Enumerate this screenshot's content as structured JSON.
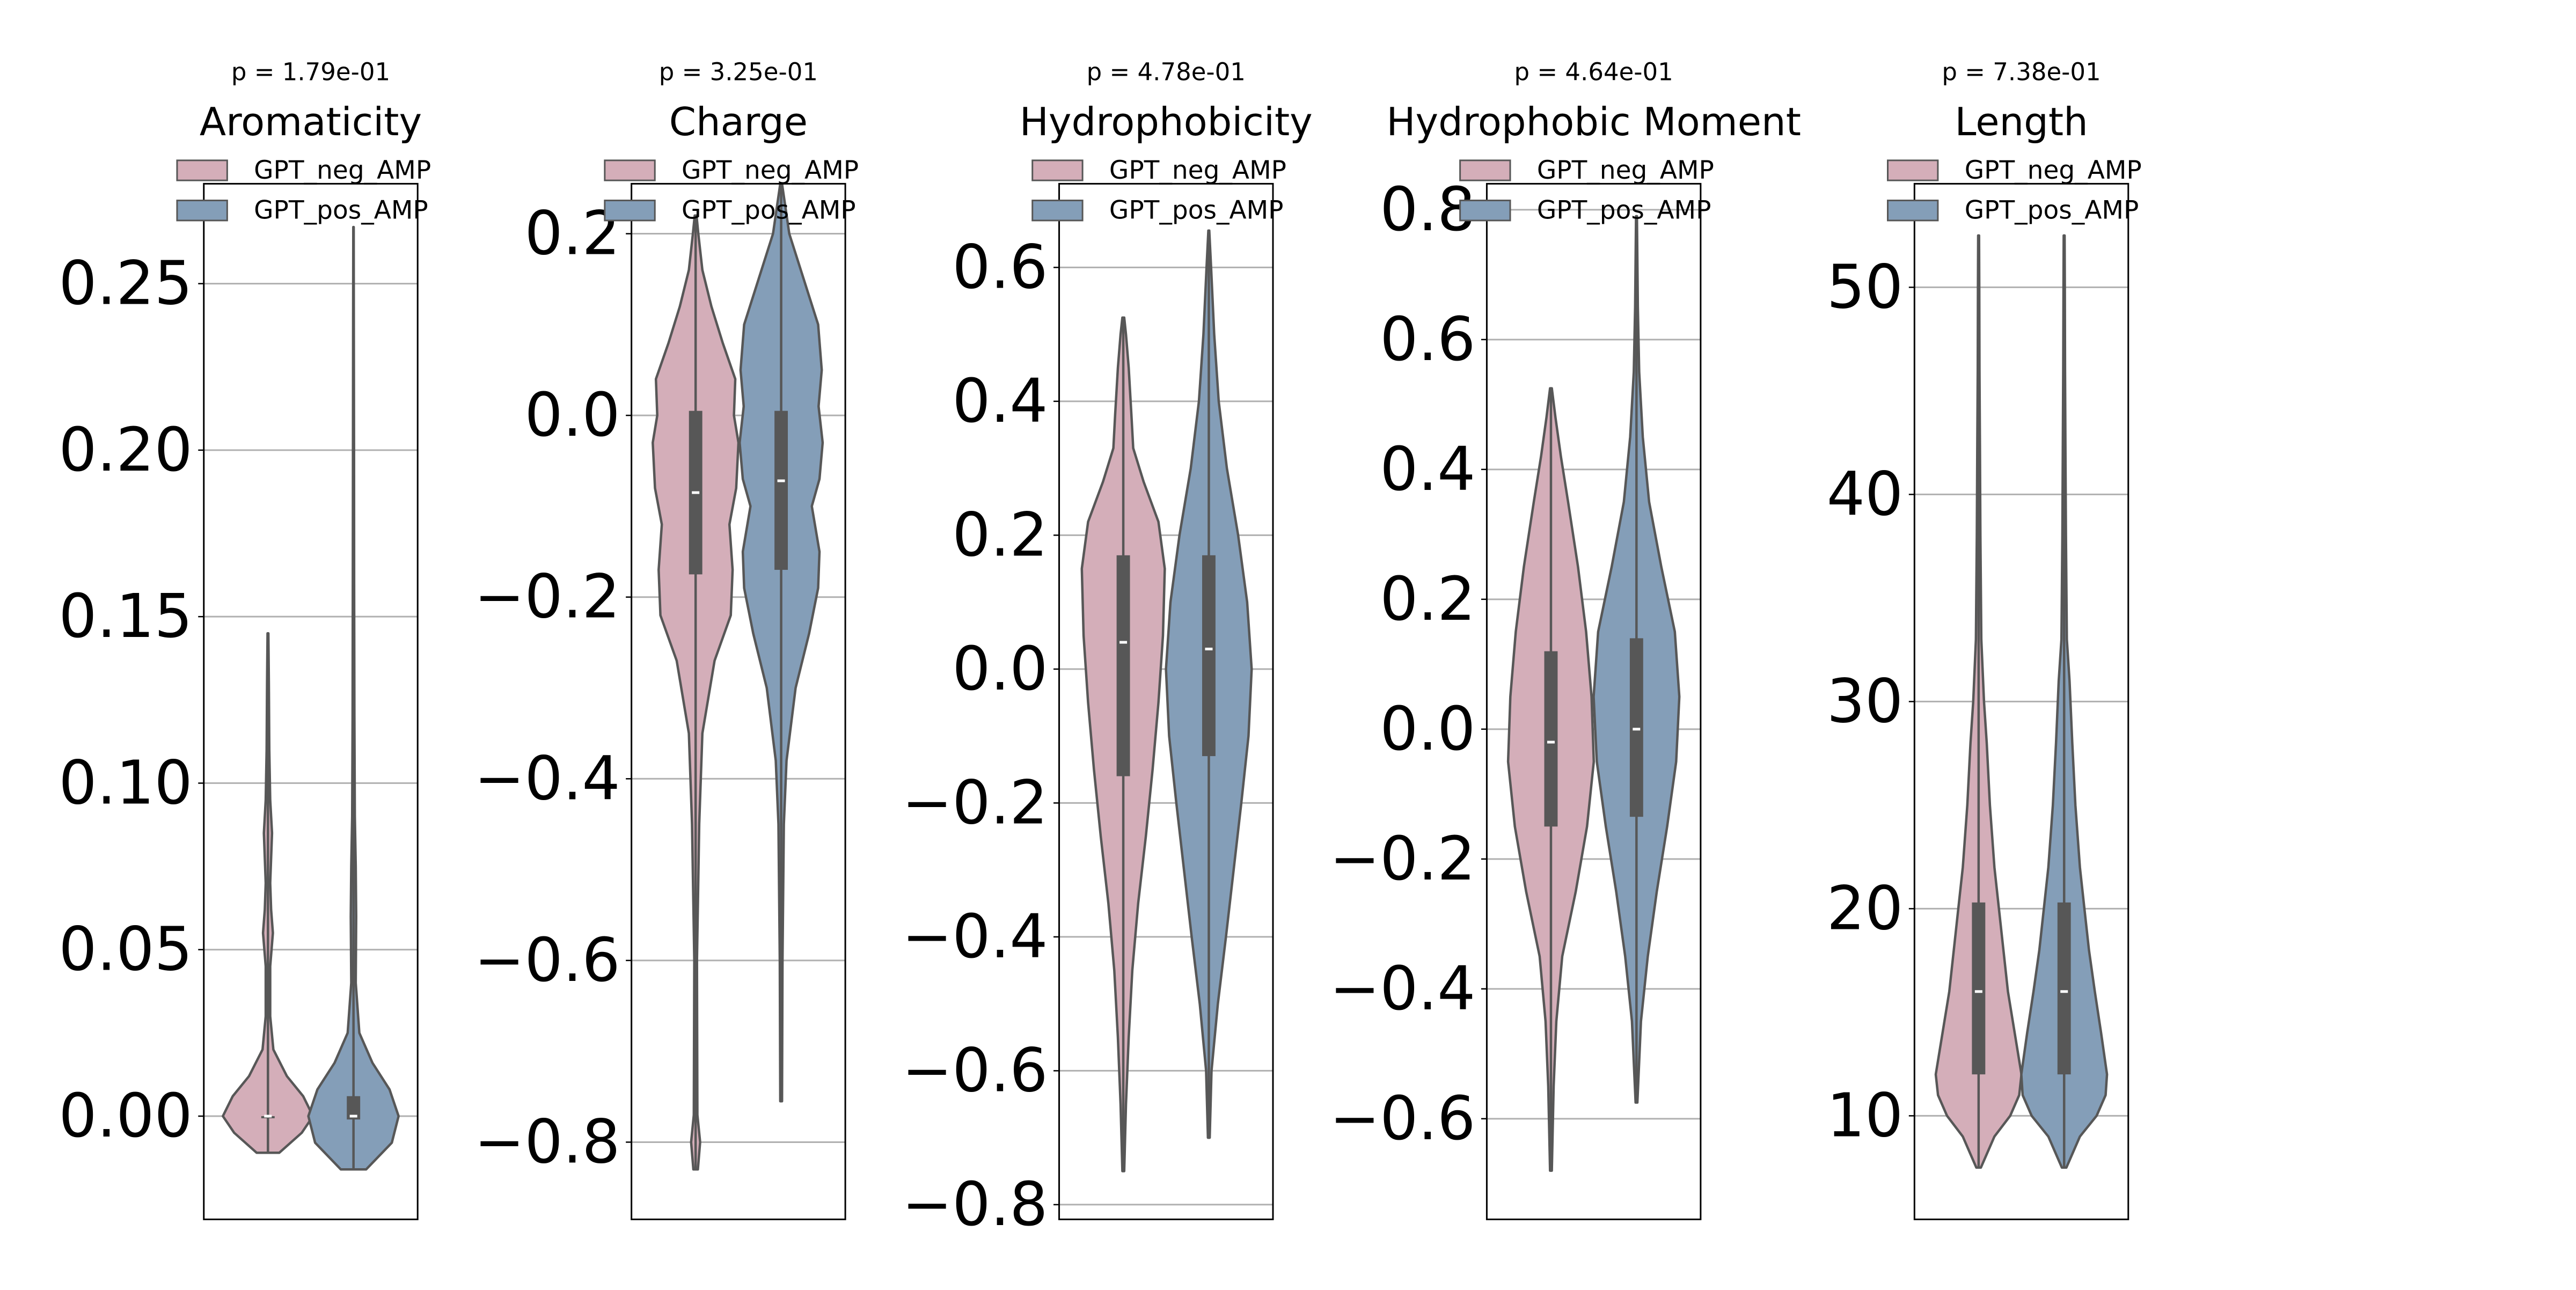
{
  "chart_data": [
    {
      "type": "violin",
      "title": "Aromaticity",
      "subtitle": "p = 1.79e-01",
      "ylim": [
        -0.031,
        0.28
      ],
      "yticks": [
        0.0,
        0.05,
        0.1,
        0.15,
        0.2,
        0.25
      ],
      "ytick_labels": [
        "0.00",
        "0.05",
        "0.10",
        "0.15",
        "0.20",
        "0.25"
      ],
      "grid": true,
      "legend_placement": "top",
      "series": [
        {
          "name": "GPT_neg_AMP",
          "color": "#d4aeb9",
          "min": -0.011,
          "q1": 0.0,
          "median": 0.0,
          "q3": 0.0,
          "max": 0.145,
          "density": [
            [
              -0.011,
              0.25
            ],
            [
              -0.005,
              0.75
            ],
            [
              0.0,
              1.0
            ],
            [
              0.006,
              0.78
            ],
            [
              0.012,
              0.42
            ],
            [
              0.02,
              0.12
            ],
            [
              0.03,
              0.05
            ],
            [
              0.045,
              0.05
            ],
            [
              0.055,
              0.11
            ],
            [
              0.062,
              0.07
            ],
            [
              0.07,
              0.05
            ],
            [
              0.085,
              0.09
            ],
            [
              0.095,
              0.05
            ],
            [
              0.11,
              0.03
            ],
            [
              0.13,
              0.02
            ],
            [
              0.145,
              0.01
            ]
          ]
        },
        {
          "name": "GPT_pos_AMP",
          "color": "#849eb8",
          "min": -0.016,
          "q1": -0.001,
          "median": 0.0,
          "q3": 0.006,
          "max": 0.267,
          "density": [
            [
              -0.016,
              0.28
            ],
            [
              -0.008,
              0.85
            ],
            [
              0.0,
              1.0
            ],
            [
              0.008,
              0.8
            ],
            [
              0.016,
              0.42
            ],
            [
              0.025,
              0.13
            ],
            [
              0.04,
              0.05
            ],
            [
              0.06,
              0.06
            ],
            [
              0.075,
              0.05
            ],
            [
              0.09,
              0.03
            ],
            [
              0.12,
              0.02
            ],
            [
              0.16,
              0.015
            ],
            [
              0.2,
              0.012
            ],
            [
              0.24,
              0.008
            ],
            [
              0.267,
              0.005
            ]
          ]
        }
      ]
    },
    {
      "type": "violin",
      "title": "Charge",
      "subtitle": "p = 3.25e-01",
      "ylim": [
        -0.885,
        0.255
      ],
      "yticks": [
        -0.8,
        -0.6,
        -0.4,
        -0.2,
        0.0,
        0.2
      ],
      "ytick_labels": [
        "−0.8",
        "−0.6",
        "−0.4",
        "−0.2",
        "0.0",
        "0.2"
      ],
      "grid": true,
      "legend_placement": "top",
      "series": [
        {
          "name": "GPT_neg_AMP",
          "color": "#d4aeb9",
          "min": -0.83,
          "q1": -0.175,
          "median": -0.085,
          "q3": 0.005,
          "max": 0.22,
          "density": [
            [
              -0.83,
              0.05
            ],
            [
              -0.8,
              0.1
            ],
            [
              -0.77,
              0.04
            ],
            [
              -0.6,
              0.03
            ],
            [
              -0.45,
              0.08
            ],
            [
              -0.35,
              0.15
            ],
            [
              -0.27,
              0.42
            ],
            [
              -0.22,
              0.78
            ],
            [
              -0.17,
              0.82
            ],
            [
              -0.12,
              0.75
            ],
            [
              -0.08,
              0.9
            ],
            [
              -0.03,
              0.95
            ],
            [
              0.0,
              0.85
            ],
            [
              0.04,
              0.88
            ],
            [
              0.08,
              0.6
            ],
            [
              0.12,
              0.35
            ],
            [
              0.16,
              0.15
            ],
            [
              0.2,
              0.06
            ],
            [
              0.22,
              0.02
            ]
          ]
        },
        {
          "name": "GPT_pos_AMP",
          "color": "#849eb8",
          "min": -0.755,
          "q1": -0.17,
          "median": -0.072,
          "q3": 0.005,
          "max": 0.255,
          "density": [
            [
              -0.755,
              0.02
            ],
            [
              -0.6,
              0.03
            ],
            [
              -0.45,
              0.06
            ],
            [
              -0.38,
              0.12
            ],
            [
              -0.3,
              0.32
            ],
            [
              -0.24,
              0.62
            ],
            [
              -0.19,
              0.82
            ],
            [
              -0.15,
              0.85
            ],
            [
              -0.1,
              0.68
            ],
            [
              -0.07,
              0.85
            ],
            [
              -0.03,
              0.92
            ],
            [
              0.01,
              0.83
            ],
            [
              0.05,
              0.9
            ],
            [
              0.1,
              0.82
            ],
            [
              0.15,
              0.5
            ],
            [
              0.2,
              0.18
            ],
            [
              0.255,
              0.02
            ]
          ]
        }
      ]
    },
    {
      "type": "violin",
      "title": "Hydrophobicity",
      "subtitle": "p = 4.78e-01",
      "ylim": [
        -0.822,
        0.725
      ],
      "yticks": [
        -0.8,
        -0.6,
        -0.4,
        -0.2,
        0.0,
        0.2,
        0.4,
        0.6
      ],
      "ytick_labels": [
        "−0.8",
        "−0.6",
        "−0.4",
        "−0.2",
        "0.0",
        "0.2",
        "0.4",
        "0.6"
      ],
      "grid": true,
      "legend_placement": "top",
      "series": [
        {
          "name": "GPT_neg_AMP",
          "color": "#d4aeb9",
          "min": -0.75,
          "q1": -0.16,
          "median": 0.04,
          "q3": 0.17,
          "max": 0.525,
          "density": [
            [
              -0.75,
              0.02
            ],
            [
              -0.65,
              0.06
            ],
            [
              -0.55,
              0.12
            ],
            [
              -0.45,
              0.2
            ],
            [
              -0.35,
              0.33
            ],
            [
              -0.25,
              0.5
            ],
            [
              -0.15,
              0.65
            ],
            [
              -0.05,
              0.78
            ],
            [
              0.05,
              0.88
            ],
            [
              0.15,
              0.92
            ],
            [
              0.22,
              0.78
            ],
            [
              0.28,
              0.45
            ],
            [
              0.33,
              0.22
            ],
            [
              0.38,
              0.18
            ],
            [
              0.45,
              0.12
            ],
            [
              0.5,
              0.06
            ],
            [
              0.525,
              0.02
            ]
          ]
        },
        {
          "name": "GPT_pos_AMP",
          "color": "#849eb8",
          "min": -0.7,
          "q1": -0.13,
          "median": 0.03,
          "q3": 0.17,
          "max": 0.655,
          "density": [
            [
              -0.7,
              0.02
            ],
            [
              -0.6,
              0.06
            ],
            [
              -0.5,
              0.2
            ],
            [
              -0.4,
              0.38
            ],
            [
              -0.3,
              0.55
            ],
            [
              -0.2,
              0.72
            ],
            [
              -0.1,
              0.88
            ],
            [
              0.0,
              0.95
            ],
            [
              0.1,
              0.85
            ],
            [
              0.2,
              0.65
            ],
            [
              0.3,
              0.4
            ],
            [
              0.4,
              0.22
            ],
            [
              0.5,
              0.12
            ],
            [
              0.6,
              0.05
            ],
            [
              0.655,
              0.01
            ]
          ]
        }
      ]
    },
    {
      "type": "violin",
      "title": "Hydrophobic Moment",
      "subtitle": "p = 4.64e-01",
      "ylim": [
        -0.755,
        0.84
      ],
      "yticks": [
        -0.6,
        -0.4,
        -0.2,
        0.0,
        0.2,
        0.4,
        0.6,
        0.8
      ],
      "ytick_labels": [
        "−0.6",
        "−0.4",
        "−0.2",
        "0.0",
        "0.2",
        "0.4",
        "0.6",
        "0.8"
      ],
      "grid": true,
      "legend_placement": "top",
      "series": [
        {
          "name": "GPT_neg_AMP",
          "color": "#d4aeb9",
          "min": -0.68,
          "q1": -0.15,
          "median": -0.02,
          "q3": 0.12,
          "max": 0.525,
          "density": [
            [
              -0.68,
              0.02
            ],
            [
              -0.55,
              0.06
            ],
            [
              -0.45,
              0.12
            ],
            [
              -0.35,
              0.25
            ],
            [
              -0.25,
              0.55
            ],
            [
              -0.15,
              0.8
            ],
            [
              -0.05,
              0.95
            ],
            [
              0.05,
              0.9
            ],
            [
              0.15,
              0.78
            ],
            [
              0.25,
              0.6
            ],
            [
              0.35,
              0.38
            ],
            [
              0.42,
              0.22
            ],
            [
              0.48,
              0.1
            ],
            [
              0.525,
              0.02
            ]
          ]
        },
        {
          "name": "GPT_pos_AMP",
          "color": "#849eb8",
          "min": -0.575,
          "q1": -0.135,
          "median": 0.0,
          "q3": 0.14,
          "max": 0.79,
          "density": [
            [
              -0.575,
              0.02
            ],
            [
              -0.45,
              0.1
            ],
            [
              -0.35,
              0.25
            ],
            [
              -0.25,
              0.45
            ],
            [
              -0.15,
              0.68
            ],
            [
              -0.05,
              0.88
            ],
            [
              0.05,
              0.95
            ],
            [
              0.15,
              0.85
            ],
            [
              0.25,
              0.55
            ],
            [
              0.35,
              0.28
            ],
            [
              0.45,
              0.14
            ],
            [
              0.55,
              0.06
            ],
            [
              0.65,
              0.03
            ],
            [
              0.79,
              0.01
            ]
          ]
        }
      ]
    },
    {
      "type": "violin",
      "title": "Length",
      "subtitle": "p = 7.38e-01",
      "ylim": [
        5,
        55
      ],
      "yticks": [
        10,
        20,
        30,
        40,
        50
      ],
      "ytick_labels": [
        "10",
        "20",
        "30",
        "40",
        "50"
      ],
      "grid": true,
      "legend_placement": "top",
      "series": [
        {
          "name": "GPT_neg_AMP",
          "color": "#d4aeb9",
          "min": 7.5,
          "q1": 12,
          "median": 16,
          "q3": 20.3,
          "max": 52.5,
          "density": [
            [
              7.5,
              0.05
            ],
            [
              9,
              0.35
            ],
            [
              10,
              0.7
            ],
            [
              11,
              0.9
            ],
            [
              12,
              0.95
            ],
            [
              14,
              0.8
            ],
            [
              16,
              0.65
            ],
            [
              18,
              0.55
            ],
            [
              20,
              0.45
            ],
            [
              22,
              0.35
            ],
            [
              25,
              0.25
            ],
            [
              28,
              0.18
            ],
            [
              30,
              0.12
            ],
            [
              33,
              0.06
            ],
            [
              38,
              0.04
            ],
            [
              42,
              0.03
            ],
            [
              46,
              0.02
            ],
            [
              50,
              0.015
            ],
            [
              52.5,
              0.01
            ]
          ]
        },
        {
          "name": "GPT_pos_AMP",
          "color": "#849eb8",
          "min": 7.5,
          "q1": 12,
          "median": 16,
          "q3": 20.3,
          "max": 52.5,
          "density": [
            [
              7.5,
              0.05
            ],
            [
              9,
              0.35
            ],
            [
              10,
              0.72
            ],
            [
              11,
              0.92
            ],
            [
              12,
              0.95
            ],
            [
              14,
              0.82
            ],
            [
              16,
              0.68
            ],
            [
              18,
              0.55
            ],
            [
              20,
              0.45
            ],
            [
              22,
              0.35
            ],
            [
              25,
              0.25
            ],
            [
              28,
              0.18
            ],
            [
              31,
              0.12
            ],
            [
              33,
              0.06
            ],
            [
              38,
              0.04
            ],
            [
              42,
              0.03
            ],
            [
              46,
              0.02
            ],
            [
              50,
              0.015
            ],
            [
              52.5,
              0.01
            ]
          ]
        }
      ]
    }
  ]
}
